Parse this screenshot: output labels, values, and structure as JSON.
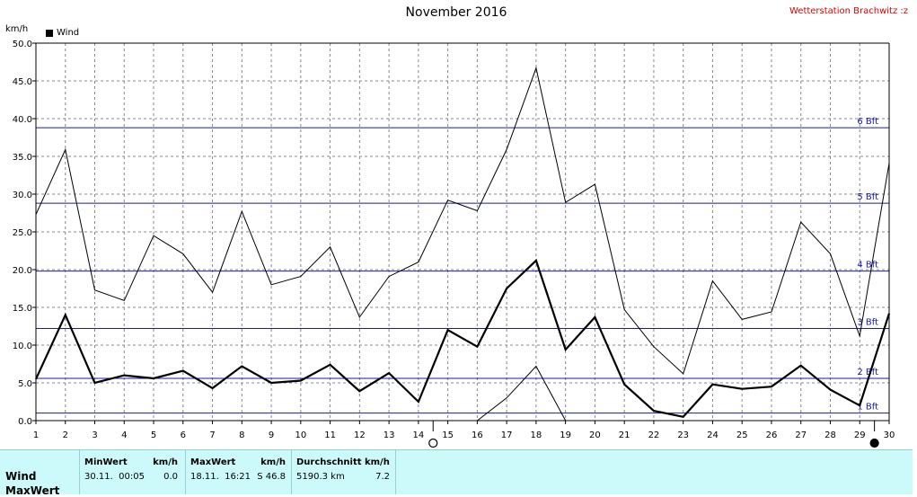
{
  "header": {
    "title": "November 2016",
    "station": "Wetterstation Brachwitz :z",
    "unit_label": "km/h",
    "legend_label": "Wind"
  },
  "chart_data": {
    "type": "line",
    "title": "November 2016",
    "ylabel": "km/h",
    "ylim": [
      0,
      50
    ],
    "xlim": [
      1,
      30
    ],
    "y_ticks": [
      "0.0",
      "5.0",
      "10.0",
      "15.0",
      "20.0",
      "25.0",
      "30.0",
      "35.0",
      "40.0",
      "45.0",
      "50.0"
    ],
    "x_ticks": [
      "1",
      "2",
      "3",
      "4",
      "5",
      "6",
      "7",
      "8",
      "9",
      "10",
      "11",
      "12",
      "13",
      "14",
      "15",
      "16",
      "17",
      "18",
      "19",
      "20",
      "21",
      "22",
      "23",
      "24",
      "25",
      "26",
      "27",
      "28",
      "29",
      "30"
    ],
    "grid": true,
    "legend": "top-left",
    "beaufort_lines": [
      {
        "label": "1 Bft",
        "value": 1.0,
        "color": "#1a1aa8"
      },
      {
        "label": "2 Bft",
        "value": 5.6,
        "color": "#1a1aa8"
      },
      {
        "label": "3 Bft",
        "value": 12.2,
        "color": "#1a1aa8"
      },
      {
        "label": "4 Bft",
        "value": 19.8,
        "color": "#1a1aa8"
      },
      {
        "label": "5 Bft",
        "value": 28.8,
        "color": "#1a1aa8"
      },
      {
        "label": "6 Bft",
        "value": 38.8,
        "color": "#1a1aa8"
      }
    ],
    "series": [
      {
        "name": "Wind",
        "style": "bold",
        "x": [
          1,
          2,
          3,
          4,
          5,
          6,
          7,
          8,
          9,
          10,
          11,
          12,
          13,
          14,
          15,
          16,
          17,
          18,
          19,
          20,
          21,
          22,
          23,
          24,
          25,
          26,
          27,
          28,
          29,
          30
        ],
        "values": [
          5.5,
          14.0,
          5.0,
          6.0,
          5.6,
          6.6,
          4.3,
          7.2,
          5.0,
          5.3,
          7.4,
          3.9,
          6.3,
          2.5,
          12.0,
          9.8,
          17.5,
          21.2,
          9.4,
          13.7,
          4.8,
          1.3,
          0.5,
          4.8,
          4.2,
          4.5,
          7.3,
          4.1,
          2.0,
          14.2
        ]
      },
      {
        "style": "thin",
        "x": [
          1,
          2,
          3,
          4,
          5,
          6,
          7,
          8,
          9,
          10,
          11,
          12,
          13,
          14,
          15,
          16,
          17,
          18,
          19,
          20,
          21,
          22,
          23,
          24,
          25,
          26,
          27,
          28,
          29,
          30
        ],
        "values": [
          27.3,
          35.9,
          17.3,
          15.9,
          24.5,
          22.1,
          17.0,
          27.7,
          18.0,
          19.1,
          23.0,
          13.7,
          19.1,
          21.0,
          29.2,
          27.8,
          35.9,
          46.7,
          28.9,
          31.3,
          14.7,
          9.8,
          6.2,
          18.5,
          13.4,
          14.4,
          26.3,
          22.1,
          11.2,
          34.1
        ]
      },
      {
        "style": "thin",
        "x": [
          16,
          17,
          18,
          19
        ],
        "values": [
          0.0,
          3.0,
          7.2,
          0.0
        ]
      }
    ],
    "moon_markers": [
      {
        "day": 14.5,
        "type": "full"
      },
      {
        "day": 29.5,
        "type": "new"
      }
    ]
  },
  "stats": {
    "row_label_1": "Wind",
    "row_label_2": "MaxWert",
    "min": {
      "header": "MinWert",
      "unit": "km/h",
      "datetime": "30.11.  00:05",
      "value": "0.0"
    },
    "max": {
      "header": "MaxWert",
      "unit": "km/h",
      "datetime": "18.11.  16:21",
      "value": "S 46.8"
    },
    "avg": {
      "header": "Durchschnitt km/h",
      "distance": "5190.3 km",
      "value": "7.2"
    }
  }
}
